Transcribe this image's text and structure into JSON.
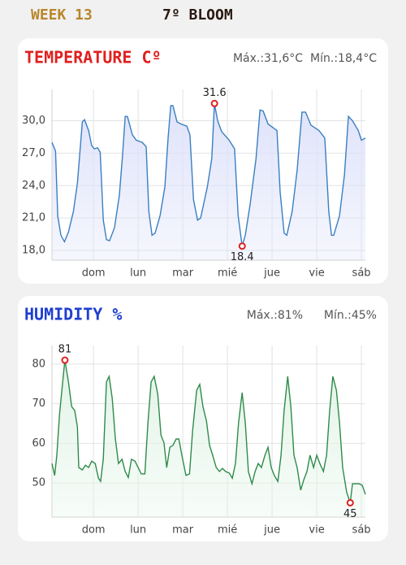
{
  "header": {
    "week": "WEEK 13",
    "stage": "7º BLOOM"
  },
  "chart_data": [
    {
      "type": "line",
      "title": "TEMPERATURE Cº",
      "max_label": "Máx.:31,6°C",
      "min_label": "Mín.:18,4°C",
      "color": "#3a7fc1",
      "fill": "#dfe3fa",
      "title_color": "#e0201f",
      "grid": true,
      "x": [
        -0.93,
        -0.85,
        -0.8,
        -0.73,
        -0.65,
        -0.56,
        -0.45,
        -0.36,
        -0.31,
        -0.25,
        -0.2,
        -0.11,
        -0.04,
        0.02,
        0.09,
        0.15,
        0.22,
        0.29,
        0.36,
        0.47,
        0.58,
        0.65,
        0.71,
        0.76,
        0.87,
        0.96,
        1.09,
        1.18,
        1.24,
        1.31,
        1.38,
        1.49,
        1.6,
        1.67,
        1.73,
        1.78,
        1.87,
        1.96,
        2.09,
        2.16,
        2.24,
        2.33,
        2.4,
        2.55,
        2.65,
        2.71,
        2.78,
        2.87,
        3.04,
        3.16,
        3.24,
        3.33,
        3.4,
        3.51,
        3.64,
        3.73,
        3.8,
        3.91,
        4.04,
        4.11,
        4.18,
        4.27,
        4.33,
        4.45,
        4.56,
        4.67,
        4.75,
        4.87,
        5.05,
        5.18,
        5.27,
        5.33,
        5.38,
        5.51,
        5.62,
        5.71,
        5.8,
        5.93,
        6.0,
        6.09
      ],
      "values": [
        28.0,
        27.2,
        21.2,
        19.4,
        18.8,
        19.7,
        21.6,
        24.2,
        26.8,
        29.9,
        30.1,
        29.1,
        27.7,
        27.4,
        27.5,
        27.1,
        20.8,
        19.0,
        18.9,
        20.1,
        23.1,
        26.8,
        30.4,
        30.4,
        28.7,
        28.2,
        28.0,
        27.6,
        21.6,
        19.4,
        19.6,
        21.2,
        23.9,
        28.4,
        31.4,
        31.4,
        29.9,
        29.7,
        29.5,
        28.7,
        22.7,
        20.8,
        21.0,
        23.9,
        26.5,
        31.6,
        30.0,
        29.0,
        28.2,
        27.4,
        21.2,
        18.4,
        19.4,
        22.3,
        26.5,
        31.0,
        30.9,
        29.7,
        29.3,
        29.1,
        23.4,
        19.6,
        19.4,
        21.6,
        25.4,
        30.8,
        30.8,
        29.6,
        29.1,
        28.4,
        21.6,
        19.4,
        19.4,
        21.2,
        25.0,
        30.4,
        30.0,
        29.1,
        28.2,
        28.4
      ],
      "highlights": [
        {
          "x": 2.71,
          "value": 31.6
        },
        {
          "x": 3.33,
          "value": 18.4
        }
      ],
      "xlim": [
        -0.93,
        6.09
      ],
      "xticks": [
        {
          "value": 0,
          "label": "dom"
        },
        {
          "value": 1,
          "label": "lun"
        },
        {
          "value": 2,
          "label": "mar"
        },
        {
          "value": 3,
          "label": "mié"
        },
        {
          "value": 4,
          "label": "jue"
        },
        {
          "value": 5,
          "label": "vie"
        },
        {
          "value": 6,
          "label": "sáb"
        }
      ],
      "ylim": [
        17.1,
        32.9
      ],
      "yticks": [
        {
          "value": 18,
          "label": "18,0"
        },
        {
          "value": 21,
          "label": "21,0"
        },
        {
          "value": 24,
          "label": "24,0"
        },
        {
          "value": 27,
          "label": "27,0"
        },
        {
          "value": 30,
          "label": "30,0"
        }
      ]
    },
    {
      "type": "line",
      "title": "HUMIDITY %",
      "max_label": "Máx.:81%",
      "min_label": "Mín.:45%",
      "color": "#2e8b4a",
      "fill": "#e3f4e8",
      "title_color": "#1f3fd0",
      "grid": true,
      "x": [
        -0.93,
        -0.87,
        -0.82,
        -0.76,
        -0.69,
        -0.64,
        -0.56,
        -0.49,
        -0.42,
        -0.36,
        -0.33,
        -0.25,
        -0.18,
        -0.11,
        -0.04,
        0.04,
        0.11,
        0.16,
        0.22,
        0.29,
        0.35,
        0.42,
        0.49,
        0.56,
        0.64,
        0.71,
        0.78,
        0.85,
        0.93,
        1.0,
        1.07,
        1.15,
        1.22,
        1.29,
        1.36,
        1.44,
        1.51,
        1.58,
        1.64,
        1.71,
        1.78,
        1.85,
        1.91,
        1.98,
        2.07,
        2.15,
        2.22,
        2.31,
        2.38,
        2.45,
        2.53,
        2.6,
        2.67,
        2.75,
        2.82,
        2.89,
        2.96,
        3.04,
        3.11,
        3.18,
        3.25,
        3.33,
        3.4,
        3.47,
        3.55,
        3.62,
        3.69,
        3.76,
        3.84,
        3.91,
        3.98,
        4.05,
        4.13,
        4.2,
        4.27,
        4.35,
        4.42,
        4.49,
        4.56,
        4.64,
        4.71,
        4.78,
        4.85,
        4.93,
        5.0,
        5.07,
        5.15,
        5.22,
        5.29,
        5.36,
        5.44,
        5.51,
        5.58,
        5.67,
        5.75,
        5.8,
        5.87,
        5.95,
        6.02,
        6.09
      ],
      "values": [
        54.9,
        51.9,
        57.0,
        67.3,
        75.5,
        81,
        75.5,
        69.3,
        68.3,
        64.2,
        53.9,
        53.3,
        54.5,
        53.9,
        55.5,
        54.9,
        51.2,
        50.4,
        56.0,
        75.5,
        76.9,
        71.4,
        61.1,
        54.9,
        56.0,
        52.9,
        51.4,
        56.0,
        55.5,
        53.9,
        52.3,
        52.3,
        65.2,
        75.5,
        76.9,
        72.4,
        62.1,
        60.1,
        53.9,
        59.0,
        59.5,
        61.1,
        61.1,
        57.0,
        51.9,
        52.3,
        63.2,
        73.4,
        74.9,
        69.3,
        65.6,
        59.5,
        57.0,
        53.9,
        52.9,
        53.7,
        52.9,
        52.5,
        51.2,
        54.9,
        65.2,
        72.8,
        65.2,
        52.9,
        49.8,
        52.9,
        54.9,
        53.9,
        57.0,
        59.0,
        53.9,
        51.9,
        50.4,
        57.0,
        68.3,
        76.9,
        69.3,
        57.0,
        53.9,
        48.2,
        50.8,
        52.9,
        57.0,
        53.9,
        57.0,
        54.9,
        52.9,
        57.0,
        68.3,
        76.9,
        73.4,
        65.2,
        53.9,
        47.7,
        45,
        49.8,
        49.8,
        49.8,
        49.4,
        47.1
      ],
      "highlights": [
        {
          "x": -0.64,
          "value": 81
        },
        {
          "x": 5.75,
          "value": 45
        }
      ],
      "xlim": [
        -0.93,
        6.09
      ],
      "xticks": [
        {
          "value": 0,
          "label": "dom"
        },
        {
          "value": 1,
          "label": "lun"
        },
        {
          "value": 2,
          "label": "mar"
        },
        {
          "value": 3,
          "label": "mié"
        },
        {
          "value": 4,
          "label": "jue"
        },
        {
          "value": 5,
          "label": "vie"
        },
        {
          "value": 6,
          "label": "sáb"
        }
      ],
      "ylim": [
        41.4,
        84.7
      ],
      "yticks": [
        50,
        60,
        70,
        80
      ]
    }
  ]
}
